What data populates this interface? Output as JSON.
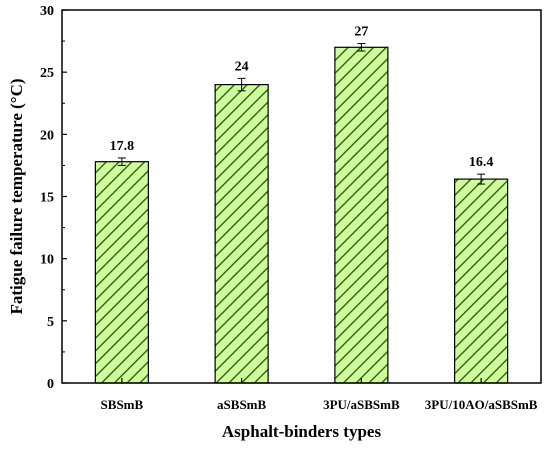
{
  "chart_data": {
    "type": "bar",
    "title": "",
    "xlabel": "Asphalt-binders types",
    "ylabel": "Fatigue failure temperature (°C)",
    "categories": [
      "SBSmB",
      "aSBSmB",
      "3PU/aSBSmB",
      "3PU/10AO/aSBSmB"
    ],
    "values": [
      17.8,
      24,
      27,
      16.4
    ],
    "value_labels": [
      "17.8",
      "24",
      "27",
      "16.4"
    ],
    "error": [
      0.3,
      0.5,
      0.3,
      0.4
    ],
    "ylim": [
      0,
      30
    ],
    "yticks": [
      0,
      5,
      10,
      15,
      20,
      25,
      30
    ],
    "ytick_labels": [
      "0",
      "5",
      "10",
      "15",
      "20",
      "25",
      "30"
    ],
    "bar_fill": "#ccff99",
    "hatch_color": "#2e4d14",
    "grid": false,
    "legend": "none"
  }
}
